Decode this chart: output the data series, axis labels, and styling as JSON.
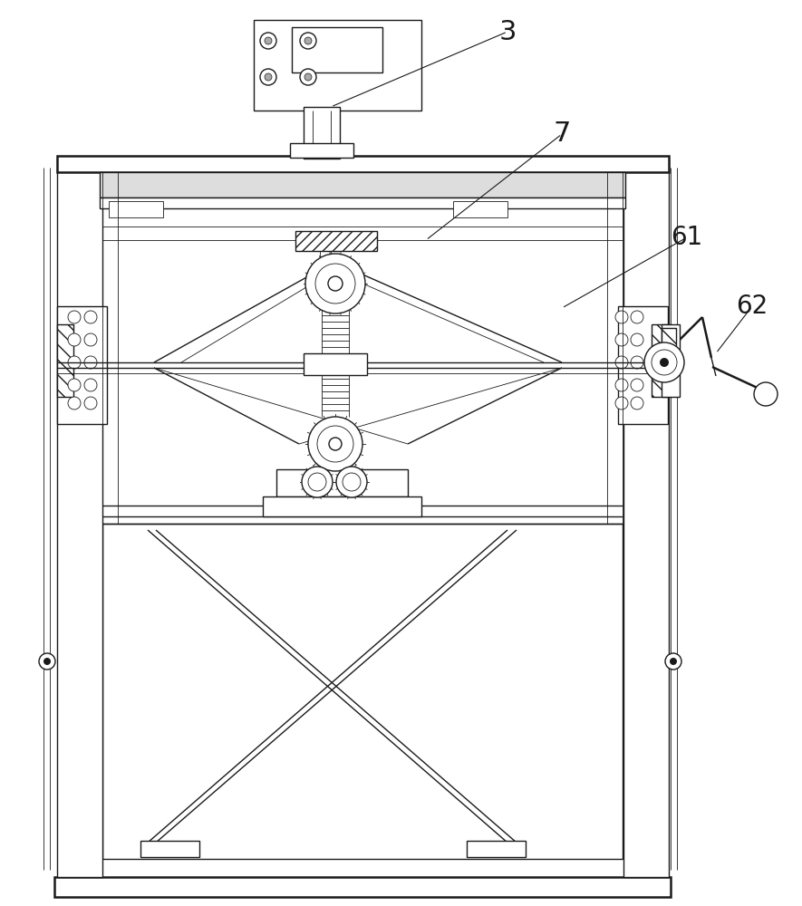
{
  "bg_color": "#ffffff",
  "lc": "#1a1a1a",
  "lw": 1.0,
  "tlw": 0.6,
  "thklw": 1.8,
  "figsize": [
    8.85,
    10.0
  ],
  "dpi": 100
}
